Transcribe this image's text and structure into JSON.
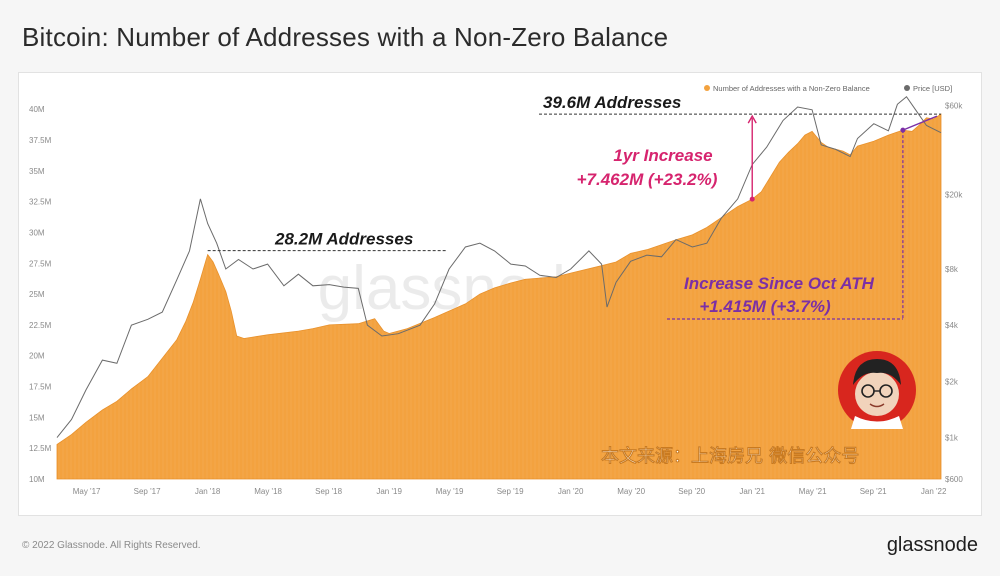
{
  "title": "Bitcoin: Number of Addresses with a Non-Zero Balance",
  "footer": {
    "copyright": "© 2022 Glassnode. All Rights Reserved.",
    "brand": "glassnode"
  },
  "watermark": "glassnode",
  "source_caption": "本文来源：上海房兄 微信公众号",
  "colors": {
    "area": "#f3a23f",
    "price": "#6b6b6b",
    "annotation_pink": "#d6246e",
    "annotation_purple": "#7b2fa6"
  },
  "annotations": {
    "peak_2018": "28.2M Addresses",
    "current": "39.6M Addresses",
    "yr_increase_line1": "1yr Increase",
    "yr_increase_line2": "+7.462M (+23.2%)",
    "ath_increase_line1": "Increase Since Oct ATH",
    "ath_increase_line2": "+1.415M (+3.7%)"
  },
  "chart_data": {
    "type": "area",
    "legend": [
      {
        "name": "Number of Addresses with a Non-Zero Balance",
        "color": "#f3a23f"
      },
      {
        "name": "Price [USD]",
        "color": "#6b6b6b"
      }
    ],
    "legend_position": "top-right",
    "x_ticks": [
      "May '17",
      "Sep '17",
      "Jan '18",
      "May '18",
      "Sep '18",
      "Jan '19",
      "May '19",
      "Sep '19",
      "Jan '20",
      "May '20",
      "Sep '20",
      "Jan '21",
      "May '21",
      "Sep '21",
      "Jan '22"
    ],
    "y_left_ticks": [
      "10M",
      "12.5M",
      "15M",
      "17.5M",
      "20M",
      "22.5M",
      "25M",
      "27.5M",
      "30M",
      "32.5M",
      "35M",
      "37.5M",
      "40M"
    ],
    "y_left_range": [
      10,
      40.5
    ],
    "y_right_ticks": [
      "$600",
      "$1k",
      "$2k",
      "$4k",
      "$8k",
      "$20k",
      "$60k"
    ],
    "y_right_values": [
      600,
      1000,
      2000,
      4000,
      8000,
      20000,
      60000
    ],
    "y_right_scale": "log",
    "x_range": [
      2017.17,
      2022.04
    ],
    "series": [
      {
        "name": "Number of Addresses with a Non-Zero Balance",
        "unit": "M",
        "points": [
          [
            2017.17,
            12.8
          ],
          [
            2017.25,
            13.6
          ],
          [
            2017.33,
            14.6
          ],
          [
            2017.42,
            15.6
          ],
          [
            2017.5,
            16.3
          ],
          [
            2017.58,
            17.3
          ],
          [
            2017.67,
            18.3
          ],
          [
            2017.75,
            19.8
          ],
          [
            2017.83,
            21.3
          ],
          [
            2017.88,
            22.8
          ],
          [
            2017.92,
            24.3
          ],
          [
            2017.96,
            26.2
          ],
          [
            2017.99,
            27.7
          ],
          [
            2018.0,
            28.2
          ],
          [
            2018.03,
            27.6
          ],
          [
            2018.06,
            26.6
          ],
          [
            2018.1,
            25.2
          ],
          [
            2018.13,
            23.6
          ],
          [
            2018.16,
            21.6
          ],
          [
            2018.2,
            21.4
          ],
          [
            2018.33,
            21.7
          ],
          [
            2018.5,
            22.0
          ],
          [
            2018.58,
            22.2
          ],
          [
            2018.67,
            22.5
          ],
          [
            2018.83,
            22.6
          ],
          [
            2018.92,
            23.0
          ],
          [
            2018.97,
            22.0
          ],
          [
            2019.0,
            21.8
          ],
          [
            2019.1,
            22.2
          ],
          [
            2019.25,
            23.1
          ],
          [
            2019.42,
            24.2
          ],
          [
            2019.5,
            25.0
          ],
          [
            2019.58,
            25.5
          ],
          [
            2019.67,
            25.9
          ],
          [
            2019.75,
            26.2
          ],
          [
            2019.83,
            26.3
          ],
          [
            2019.92,
            26.4
          ],
          [
            2020.0,
            26.7
          ],
          [
            2020.17,
            27.3
          ],
          [
            2020.25,
            27.6
          ],
          [
            2020.33,
            28.3
          ],
          [
            2020.42,
            28.6
          ],
          [
            2020.5,
            29.0
          ],
          [
            2020.58,
            29.4
          ],
          [
            2020.67,
            29.8
          ],
          [
            2020.75,
            30.4
          ],
          [
            2020.83,
            31.2
          ],
          [
            2020.92,
            32.1
          ],
          [
            2021.0,
            32.7
          ],
          [
            2021.05,
            33.3
          ],
          [
            2021.1,
            34.5
          ],
          [
            2021.15,
            35.7
          ],
          [
            2021.2,
            36.5
          ],
          [
            2021.25,
            37.2
          ],
          [
            2021.29,
            37.9
          ],
          [
            2021.33,
            38.2
          ],
          [
            2021.38,
            37.3
          ],
          [
            2021.42,
            36.9
          ],
          [
            2021.5,
            36.6
          ],
          [
            2021.54,
            36.3
          ],
          [
            2021.58,
            37.0
          ],
          [
            2021.67,
            37.4
          ],
          [
            2021.75,
            37.9
          ],
          [
            2021.79,
            38.1
          ],
          [
            2021.83,
            38.3
          ],
          [
            2021.88,
            38.2
          ],
          [
            2021.92,
            38.7
          ],
          [
            2021.96,
            39.3
          ],
          [
            2022.0,
            39.2
          ],
          [
            2022.04,
            39.6
          ]
        ]
      },
      {
        "name": "Price [USD]",
        "unit": "USD",
        "points": [
          [
            2017.17,
            1000
          ],
          [
            2017.25,
            1250
          ],
          [
            2017.33,
            1800
          ],
          [
            2017.42,
            2600
          ],
          [
            2017.5,
            2500
          ],
          [
            2017.58,
            4000
          ],
          [
            2017.67,
            4300
          ],
          [
            2017.75,
            4700
          ],
          [
            2017.83,
            7000
          ],
          [
            2017.9,
            10000
          ],
          [
            2017.96,
            19000
          ],
          [
            2018.0,
            14000
          ],
          [
            2018.05,
            11000
          ],
          [
            2018.1,
            8000
          ],
          [
            2018.17,
            9000
          ],
          [
            2018.25,
            8000
          ],
          [
            2018.33,
            8500
          ],
          [
            2018.42,
            6500
          ],
          [
            2018.5,
            7500
          ],
          [
            2018.58,
            6500
          ],
          [
            2018.67,
            6600
          ],
          [
            2018.75,
            6400
          ],
          [
            2018.83,
            6300
          ],
          [
            2018.88,
            4000
          ],
          [
            2018.96,
            3500
          ],
          [
            2019.05,
            3600
          ],
          [
            2019.17,
            4000
          ],
          [
            2019.25,
            5200
          ],
          [
            2019.33,
            8000
          ],
          [
            2019.42,
            10500
          ],
          [
            2019.5,
            11000
          ],
          [
            2019.58,
            10000
          ],
          [
            2019.67,
            8500
          ],
          [
            2019.75,
            8300
          ],
          [
            2019.83,
            7400
          ],
          [
            2019.92,
            7200
          ],
          [
            2020.0,
            8000
          ],
          [
            2020.1,
            10000
          ],
          [
            2020.17,
            8500
          ],
          [
            2020.2,
            5000
          ],
          [
            2020.25,
            6800
          ],
          [
            2020.33,
            8800
          ],
          [
            2020.42,
            9500
          ],
          [
            2020.5,
            9300
          ],
          [
            2020.58,
            11500
          ],
          [
            2020.67,
            10500
          ],
          [
            2020.75,
            11000
          ],
          [
            2020.83,
            15000
          ],
          [
            2020.92,
            19000
          ],
          [
            2021.0,
            29000
          ],
          [
            2021.08,
            36000
          ],
          [
            2021.17,
            50000
          ],
          [
            2021.25,
            59000
          ],
          [
            2021.33,
            57000
          ],
          [
            2021.38,
            37000
          ],
          [
            2021.46,
            35000
          ],
          [
            2021.54,
            32000
          ],
          [
            2021.58,
            40000
          ],
          [
            2021.67,
            48000
          ],
          [
            2021.75,
            44000
          ],
          [
            2021.8,
            61000
          ],
          [
            2021.85,
            67000
          ],
          [
            2021.9,
            57000
          ],
          [
            2021.96,
            47000
          ],
          [
            2022.04,
            43000
          ]
        ]
      }
    ]
  }
}
